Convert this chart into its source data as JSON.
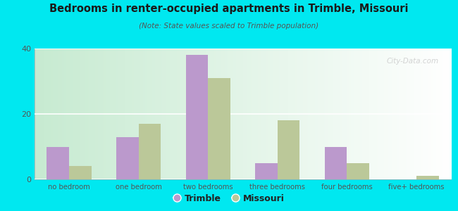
{
  "title": "Bedrooms in renter-occupied apartments in Trimble, Missouri",
  "subtitle": "(Note: State values scaled to Trimble population)",
  "categories": [
    "no bedroom",
    "one bedroom",
    "two bedrooms",
    "three bedrooms",
    "four bedrooms",
    "five+ bedrooms"
  ],
  "trimble_values": [
    10,
    13,
    38,
    5,
    10,
    0
  ],
  "missouri_values": [
    4,
    17,
    31,
    18,
    5,
    1
  ],
  "trimble_color": "#bb99cc",
  "missouri_color": "#bbc899",
  "background_outer": "#00e8f0",
  "ylim": [
    0,
    40
  ],
  "yticks": [
    0,
    20,
    40
  ],
  "bar_width": 0.32,
  "watermark": "City-Data.com",
  "legend_labels": [
    "Trimble",
    "Missouri"
  ],
  "grid_color": "#dddddd"
}
